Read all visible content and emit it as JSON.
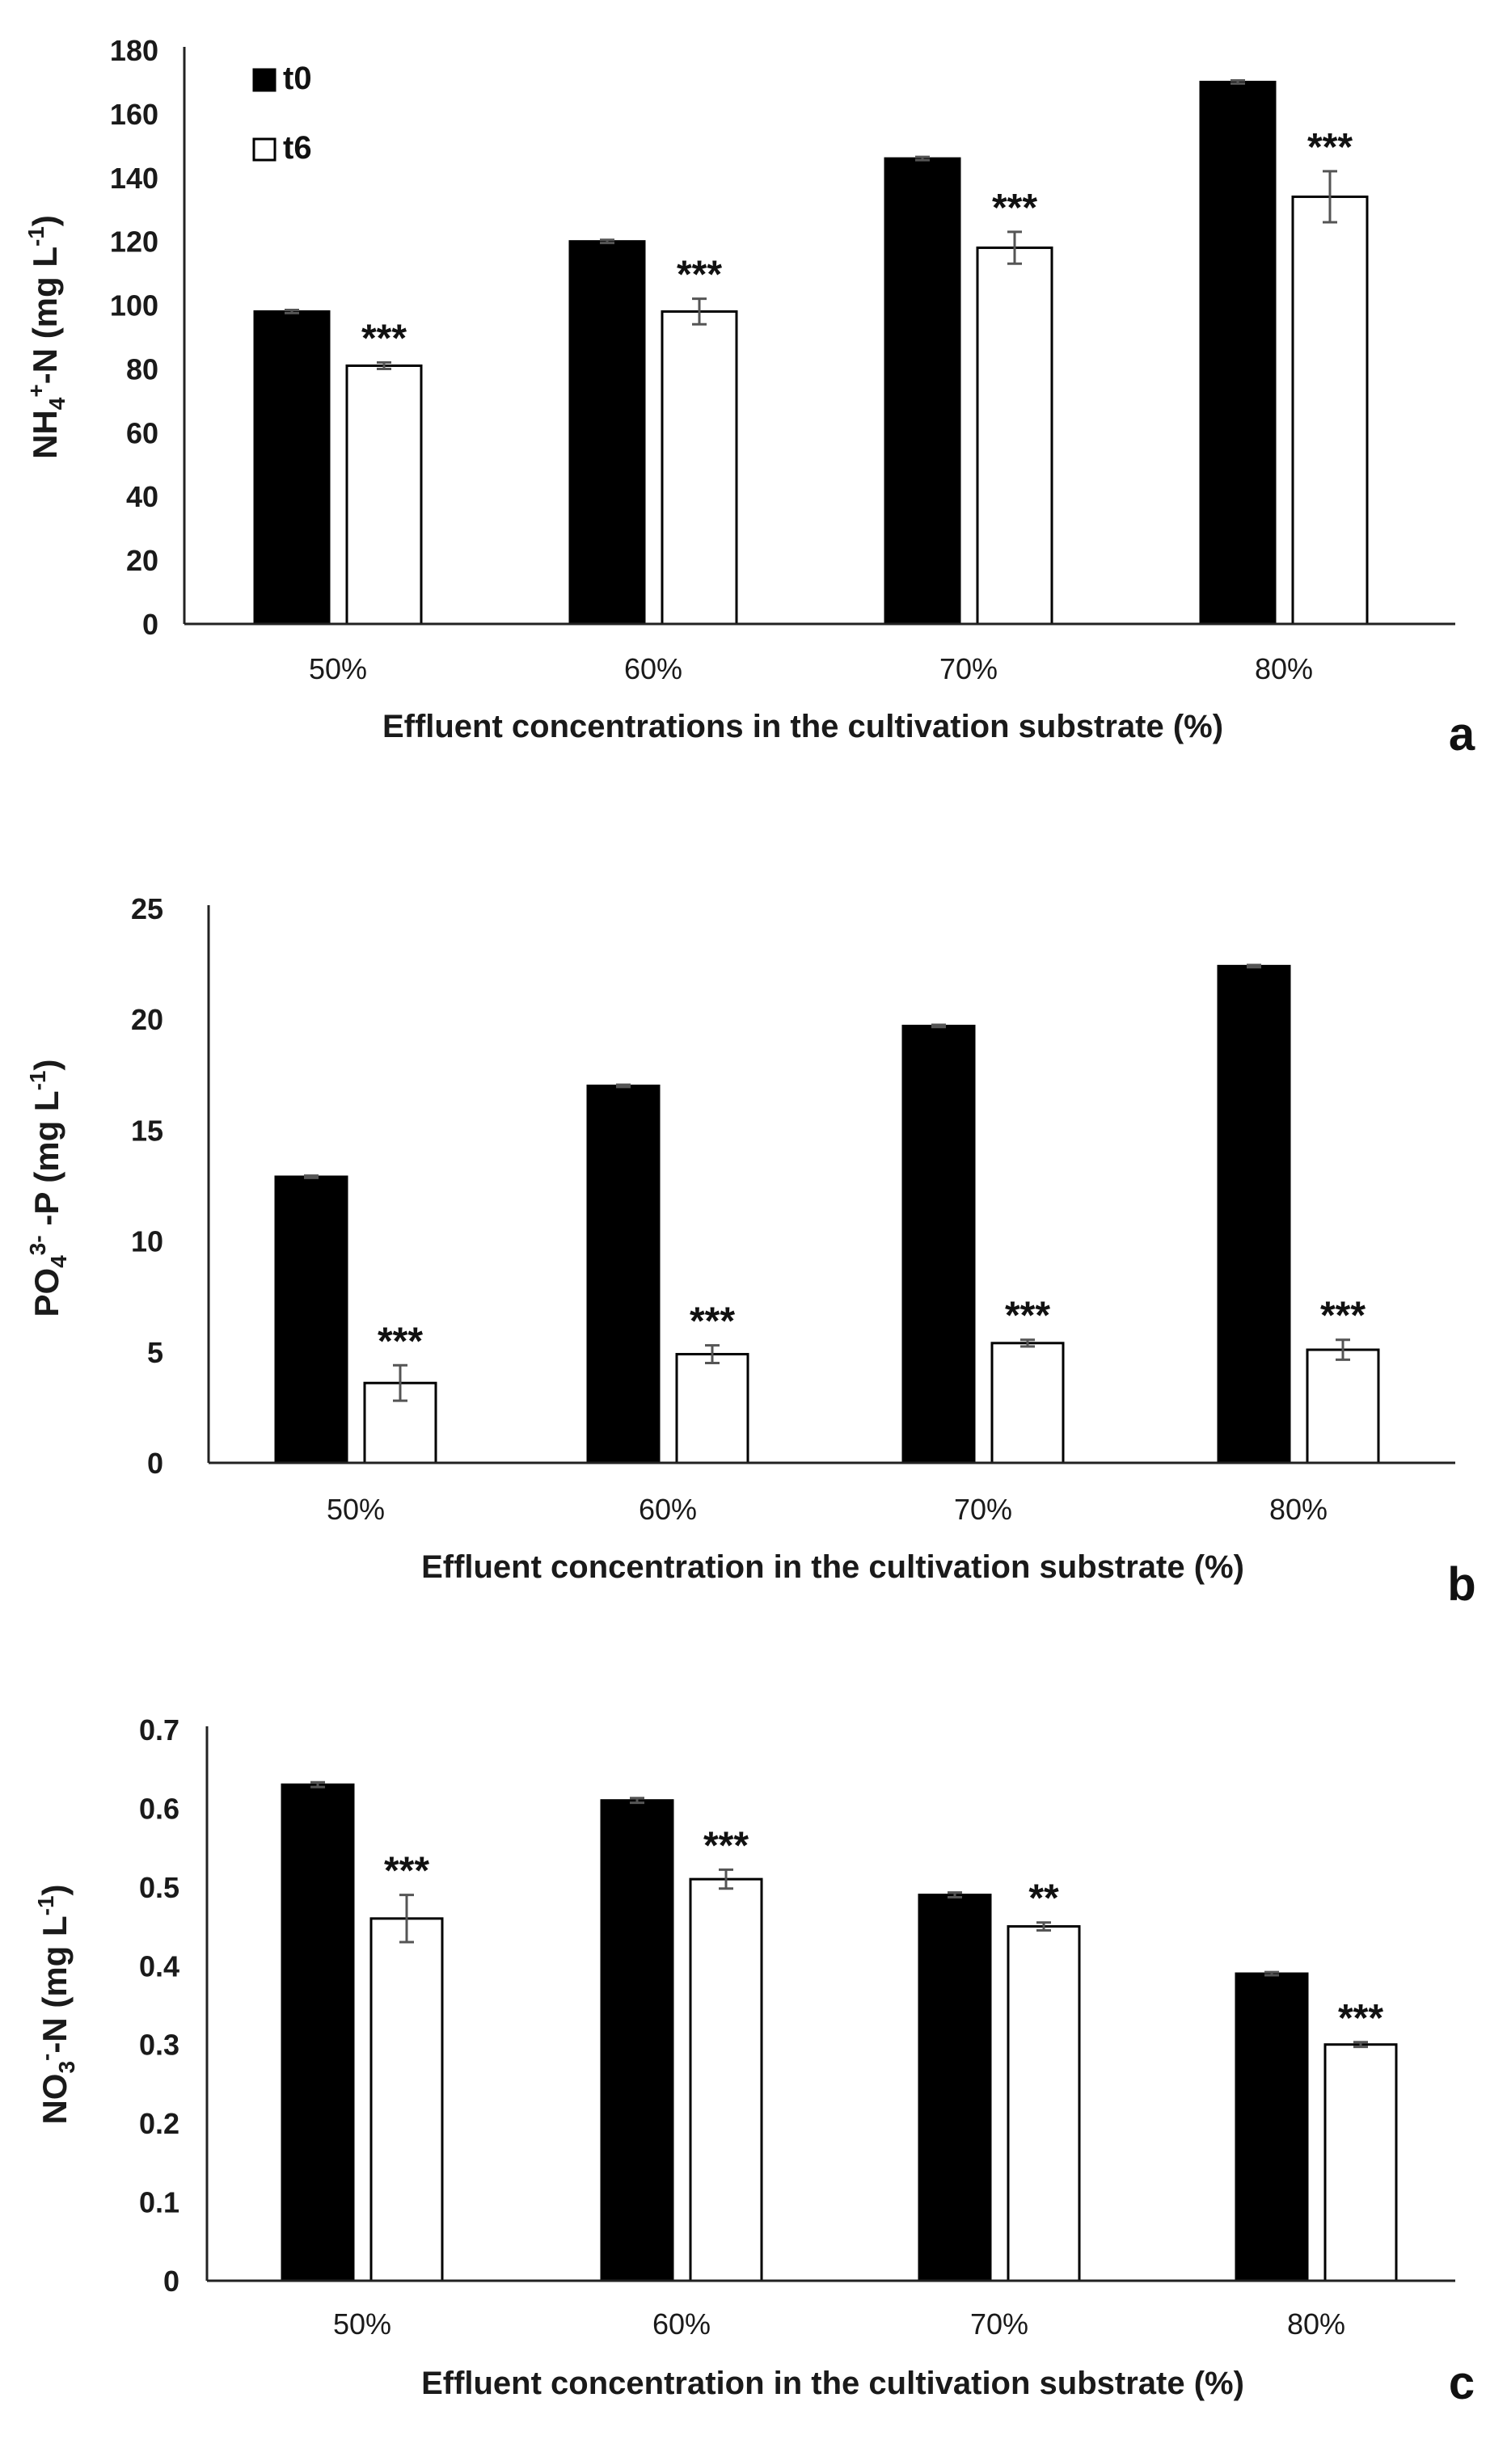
{
  "chart_data": [
    {
      "type": "bar",
      "panel": "a",
      "categories": [
        "50%",
        "60%",
        "70%",
        "80%"
      ],
      "series": [
        {
          "name": "t0",
          "color": "#000000",
          "values": [
            98,
            120,
            146,
            170
          ],
          "errors": [
            0.5,
            0.5,
            0.5,
            0.5
          ]
        },
        {
          "name": "t6",
          "color": "#ffffff",
          "values": [
            81,
            98,
            118,
            134
          ],
          "errors": [
            1,
            4,
            5,
            8
          ]
        }
      ],
      "significance": [
        "***",
        "***",
        "***",
        "***"
      ],
      "ylabel": {
        "base": "NH",
        "sub": "4",
        "sup": "+",
        "rest": "-N (mg L",
        "unit_sup": "-1",
        "close": ")"
      },
      "xlabel": "Effluent concentrations in the cultivation substrate (%)",
      "ylim": [
        0,
        180
      ],
      "yticks": [
        0,
        20,
        40,
        60,
        80,
        100,
        120,
        140,
        160,
        180
      ],
      "legend": "top-left"
    },
    {
      "type": "bar",
      "panel": "b",
      "categories": [
        "50%",
        "60%",
        "70%",
        "80%"
      ],
      "series": [
        {
          "name": "t0",
          "color": "#000000",
          "values": [
            12.9,
            17.0,
            19.7,
            22.4
          ],
          "errors": [
            0.05,
            0.05,
            0.05,
            0.05
          ]
        },
        {
          "name": "t6",
          "color": "#ffffff",
          "values": [
            3.6,
            4.9,
            5.4,
            5.1
          ],
          "errors": [
            0.8,
            0.4,
            0.15,
            0.45
          ]
        }
      ],
      "significance": [
        "***",
        "***",
        "***",
        "***"
      ],
      "ylabel": {
        "base": "PO",
        "sub": "4",
        "sup": "3-",
        "rest": " -P (mg L",
        "unit_sup": "-1",
        "close": ")"
      },
      "xlabel": "Effluent concentration in the cultivation substrate (%)",
      "ylim": [
        0,
        25
      ],
      "yticks": [
        0,
        5,
        10,
        15,
        20,
        25
      ]
    },
    {
      "type": "bar",
      "panel": "c",
      "categories": [
        "50%",
        "60%",
        "70%",
        "80%"
      ],
      "series": [
        {
          "name": "t0",
          "color": "#000000",
          "values": [
            0.63,
            0.61,
            0.49,
            0.39
          ],
          "errors": [
            0.003,
            0.003,
            0.003,
            0.002
          ]
        },
        {
          "name": "t6",
          "color": "#ffffff",
          "values": [
            0.46,
            0.51,
            0.45,
            0.3
          ],
          "errors": [
            0.03,
            0.012,
            0.005,
            0.003
          ]
        }
      ],
      "significance": [
        "***",
        "***",
        "**",
        "***"
      ],
      "ylabel": {
        "base": "NO",
        "sub": "3",
        "sup": "-",
        "rest": "-N (mg L",
        "unit_sup": "-1",
        "close": ")"
      },
      "xlabel": "Effluent concentration in the cultivation substrate (%)",
      "ylim": [
        0,
        0.7
      ],
      "yticks": [
        "0",
        "0.1",
        "0.2",
        "0.3",
        "0.4",
        "0.5",
        "0.6",
        "0.7"
      ]
    }
  ]
}
